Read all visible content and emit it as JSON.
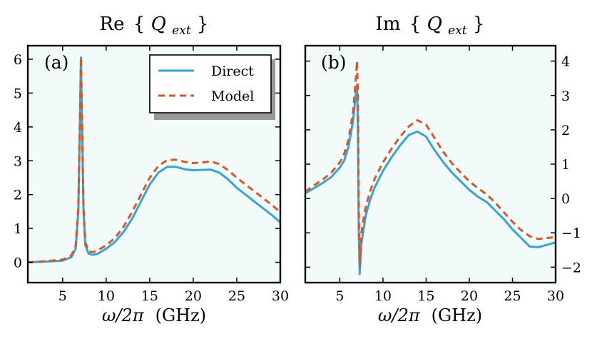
{
  "chart_data": [
    {
      "type": "line",
      "panel_label": "(a)",
      "title": "Re{Q_ext}",
      "title_parts": {
        "prefix": "Re",
        "lbrace": "{",
        "q": "Q",
        "sub": "ext",
        "rbrace": "}"
      },
      "xlabel": "ω/2π  (GHz)",
      "xlabel_parts": {
        "omega": "ω/2π",
        "unit": "(GHz)"
      },
      "ylabel": "",
      "xlim": [
        1,
        30
      ],
      "ylim": [
        -0.6,
        6.4
      ],
      "xticks": [
        5,
        10,
        15,
        20,
        25,
        30
      ],
      "yticks": [
        0,
        1,
        2,
        3,
        4,
        5,
        6
      ],
      "ytick_side": "left",
      "legend": {
        "placement": "top-right",
        "entries": [
          "Direct",
          "Model"
        ]
      },
      "series": [
        {
          "name": "Direct",
          "color": "#3aa3d0",
          "style": "solid",
          "x": [
            1,
            3,
            5,
            6,
            6.5,
            6.8,
            7.0,
            7.1,
            7.2,
            7.4,
            7.6,
            8,
            8.5,
            9,
            10,
            11,
            12,
            13,
            14,
            15,
            16,
            17,
            18,
            19,
            20,
            21,
            22,
            23,
            24,
            25,
            26,
            27,
            28,
            29,
            30
          ],
          "values": [
            0,
            0.02,
            0.05,
            0.15,
            0.4,
            1.5,
            4.3,
            6.05,
            4.5,
            1.5,
            0.5,
            0.25,
            0.22,
            0.25,
            0.4,
            0.6,
            0.9,
            1.3,
            1.8,
            2.3,
            2.65,
            2.82,
            2.82,
            2.75,
            2.72,
            2.73,
            2.74,
            2.65,
            2.45,
            2.2,
            2.0,
            1.8,
            1.6,
            1.4,
            1.18
          ]
        },
        {
          "name": "Model",
          "color": "#d25a2a",
          "style": "dashed",
          "x": [
            1,
            3,
            5,
            6,
            6.5,
            6.8,
            7.0,
            7.1,
            7.2,
            7.4,
            7.6,
            8,
            8.5,
            9,
            10,
            11,
            12,
            13,
            14,
            15,
            16,
            17,
            18,
            19,
            20,
            21,
            22,
            23,
            24,
            25,
            26,
            27,
            28,
            29,
            30
          ],
          "values": [
            0,
            0.03,
            0.08,
            0.2,
            0.5,
            1.6,
            4.4,
            6.05,
            4.6,
            1.6,
            0.6,
            0.32,
            0.3,
            0.35,
            0.5,
            0.72,
            1.05,
            1.5,
            2.0,
            2.5,
            2.85,
            3.02,
            3.03,
            2.97,
            2.93,
            2.95,
            2.98,
            2.9,
            2.72,
            2.5,
            2.3,
            2.1,
            1.9,
            1.7,
            1.48
          ]
        }
      ]
    },
    {
      "type": "line",
      "panel_label": "(b)",
      "title": "Im{Q_ext}",
      "title_parts": {
        "prefix": "Im",
        "lbrace": "{",
        "q": "Q",
        "sub": "ext",
        "rbrace": "}"
      },
      "xlabel": "ω/2π  (GHz)",
      "xlabel_parts": {
        "omega": "ω/2π",
        "unit": "(GHz)"
      },
      "ylabel": "",
      "xlim": [
        1,
        30
      ],
      "ylim": [
        -2.45,
        4.45
      ],
      "xticks": [
        5,
        10,
        15,
        20,
        25,
        30
      ],
      "yticks": [
        -2,
        -1,
        0,
        1,
        2,
        3,
        4
      ],
      "ytick_side": "right",
      "series": [
        {
          "name": "Direct",
          "color": "#3aa3d0",
          "style": "solid",
          "x": [
            1,
            2,
            3,
            4,
            5,
            5.5,
            6,
            6.5,
            6.8,
            7.0,
            7.1,
            7.2,
            7.3,
            7.5,
            8,
            8.5,
            9,
            10,
            11,
            12,
            13,
            14,
            15,
            16,
            17,
            18,
            19,
            20,
            21,
            22,
            23,
            24,
            25,
            26,
            27,
            28,
            29,
            30
          ],
          "values": [
            0.15,
            0.3,
            0.45,
            0.62,
            0.9,
            1.1,
            1.5,
            2.2,
            2.9,
            3.3,
            2.0,
            -1.0,
            -2.2,
            -1.3,
            -0.5,
            -0.05,
            0.3,
            0.8,
            1.2,
            1.55,
            1.85,
            1.95,
            1.8,
            1.4,
            1.05,
            0.75,
            0.5,
            0.25,
            0.05,
            -0.1,
            -0.35,
            -0.6,
            -0.9,
            -1.15,
            -1.4,
            -1.42,
            -1.35,
            -1.28
          ]
        },
        {
          "name": "Model",
          "color": "#d25a2a",
          "style": "dashed",
          "x": [
            1,
            2,
            3,
            4,
            5,
            5.5,
            6,
            6.5,
            6.8,
            7.0,
            7.1,
            7.2,
            7.3,
            7.5,
            8,
            8.5,
            9,
            10,
            11,
            12,
            13,
            14,
            15,
            16,
            17,
            18,
            19,
            20,
            21,
            22,
            23,
            24,
            25,
            26,
            27,
            28,
            29,
            30
          ],
          "values": [
            0.2,
            0.38,
            0.55,
            0.75,
            1.05,
            1.3,
            1.7,
            2.45,
            3.3,
            4.0,
            3.0,
            -0.2,
            -1.95,
            -1.0,
            -0.25,
            0.2,
            0.55,
            1.05,
            1.45,
            1.8,
            2.1,
            2.28,
            2.15,
            1.75,
            1.35,
            1.02,
            0.75,
            0.5,
            0.3,
            0.12,
            -0.12,
            -0.4,
            -0.68,
            -0.92,
            -1.1,
            -1.18,
            -1.15,
            -1.13
          ]
        }
      ]
    }
  ]
}
